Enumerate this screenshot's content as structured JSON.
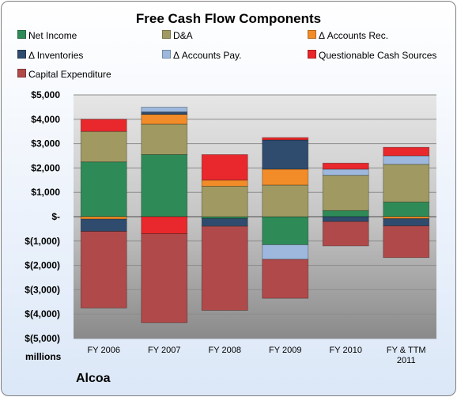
{
  "chart_data": {
    "type": "bar",
    "stacked": true,
    "title": "Free Cash Flow Components",
    "units_label": "millions",
    "company": "Alcoa",
    "categories": [
      "FY 2006",
      "FY 2007",
      "FY 2008",
      "FY 2009",
      "FY 2010",
      "FY & TTM\n2011"
    ],
    "ylim": [
      -5000,
      5000
    ],
    "yticks": [
      5000,
      4000,
      3000,
      2000,
      1000,
      0,
      -1000,
      -2000,
      -3000,
      -4000,
      -5000
    ],
    "ytick_labels": [
      "$5,000",
      "$4,000",
      "$3,000",
      "$2,000",
      "$1,000",
      "$-",
      "$(1,000)",
      "$(2,000)",
      "$(3,000)",
      "$(4,000)",
      "$(5,000)"
    ],
    "grid": true,
    "legend_position": "top",
    "series": [
      {
        "name": "Net Income",
        "color": "#2e8b57",
        "values": [
          2250,
          2550,
          -75,
          -1150,
          250,
          600
        ]
      },
      {
        "name": "D&A",
        "color": "#a09a62",
        "values": [
          1250,
          1250,
          1250,
          1300,
          1450,
          1550
        ]
      },
      {
        "name": "Δ Accounts Rec.",
        "color": "#f28c28",
        "values": [
          -100,
          400,
          250,
          650,
          0,
          -80
        ]
      },
      {
        "name": "Δ Inventories",
        "color": "#2f4b6e",
        "values": [
          -500,
          100,
          -300,
          1200,
          -200,
          -300
        ]
      },
      {
        "name": "Δ Accounts Pay.",
        "color": "#9db8dc",
        "values": [
          0,
          200,
          -20,
          -600,
          250,
          350
        ]
      },
      {
        "name": "Questionable Cash Sources",
        "color": "#e8282c",
        "values": [
          500,
          -700,
          1050,
          100,
          250,
          350
        ]
      },
      {
        "name": "Capital Expenditure",
        "color": "#b04a4a",
        "values": [
          -3150,
          -3650,
          -3450,
          -1600,
          -1000,
          -1300
        ]
      }
    ]
  }
}
